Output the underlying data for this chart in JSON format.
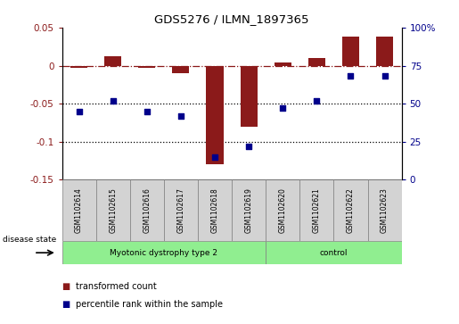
{
  "title": "GDS5276 / ILMN_1897365",
  "samples": [
    "GSM1102614",
    "GSM1102615",
    "GSM1102616",
    "GSM1102617",
    "GSM1102618",
    "GSM1102619",
    "GSM1102620",
    "GSM1102621",
    "GSM1102622",
    "GSM1102623"
  ],
  "red_values": [
    -0.003,
    0.012,
    -0.003,
    -0.01,
    -0.13,
    -0.08,
    0.004,
    0.01,
    0.038,
    0.038
  ],
  "blue_percentiles": [
    45,
    52,
    45,
    42,
    15,
    22,
    47,
    52,
    68,
    68
  ],
  "ylim_left": [
    -0.15,
    0.05
  ],
  "ylim_right": [
    0,
    100
  ],
  "yticks_left": [
    0.05,
    0,
    -0.05,
    -0.1,
    -0.15
  ],
  "yticks_right": [
    100,
    75,
    50,
    25,
    0
  ],
  "hlines_dotted": [
    -0.05,
    -0.1
  ],
  "red_color": "#8B1A1A",
  "blue_color": "#00008B",
  "legend_red": "transformed count",
  "legend_blue": "percentile rank within the sample",
  "disease_state_label": "disease state",
  "group1_label": "Myotonic dystrophy type 2",
  "group1_samples": 6,
  "group2_label": "control",
  "group2_samples": 4,
  "green_color": "#90ee90",
  "label_box_color": "#d3d3d3"
}
